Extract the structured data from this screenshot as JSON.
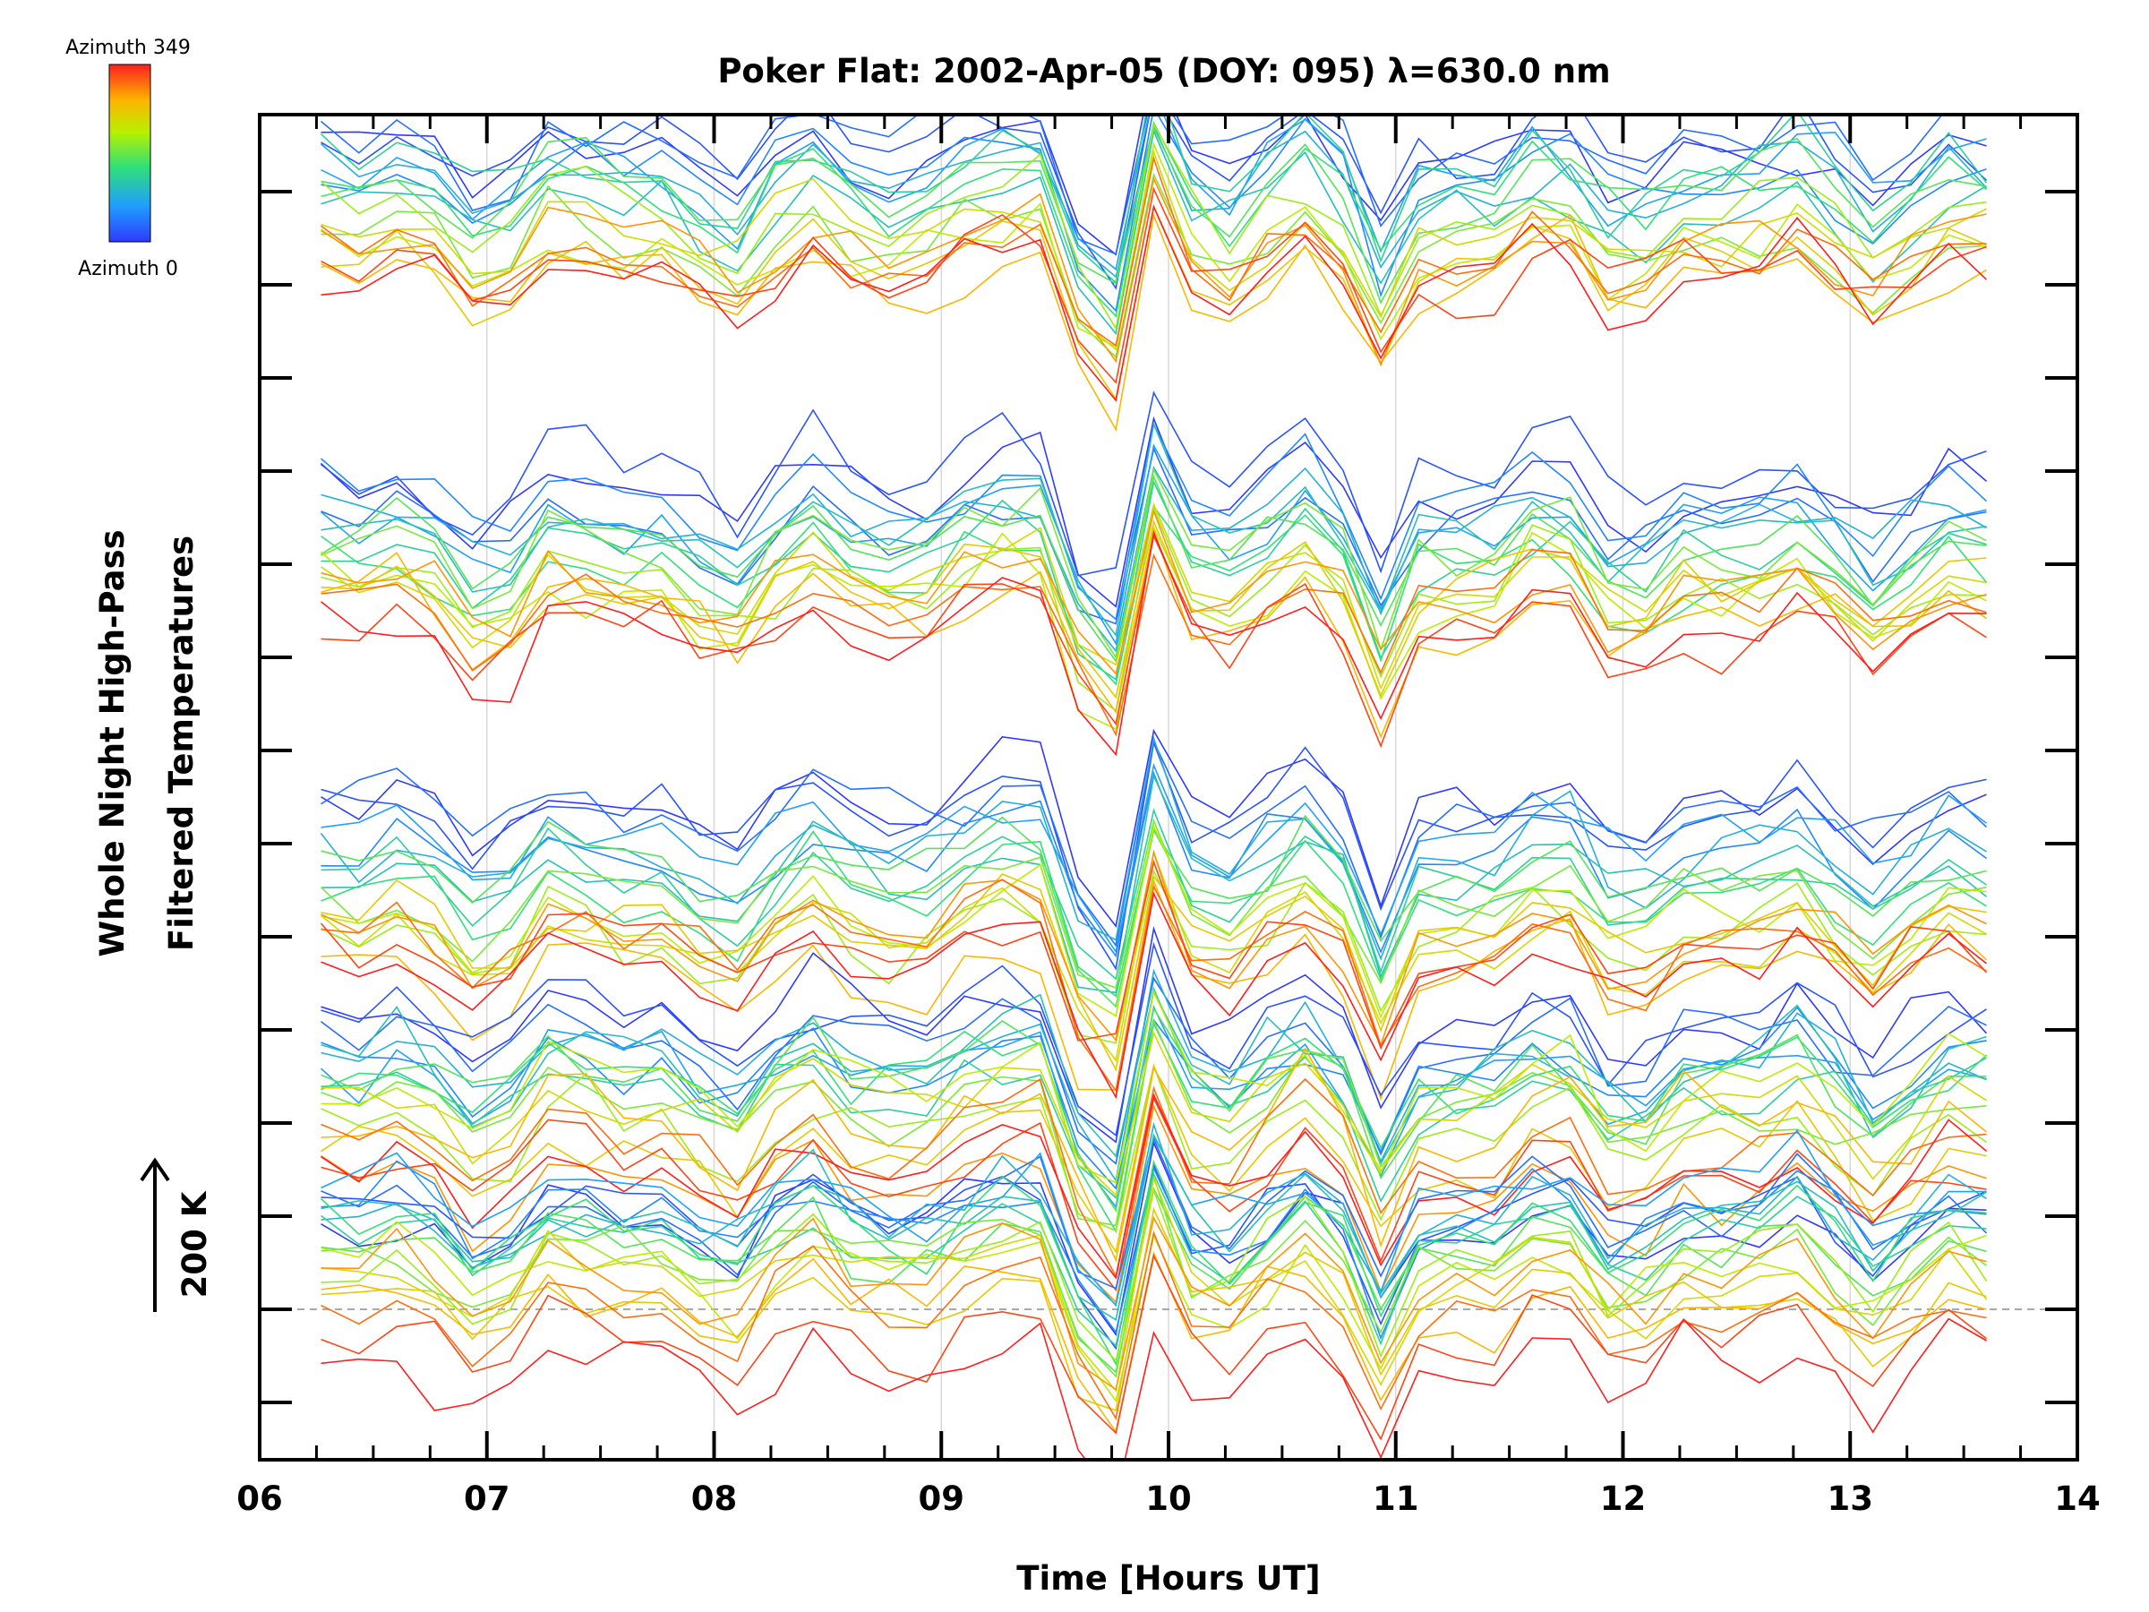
{
  "chart_data": {
    "type": "line",
    "title": "Poker Flat: 2002-Apr-05 (DOY: 095) λ=630.0 nm",
    "xlabel": "Time [Hours UT]",
    "ylabel_line1": "Whole Night High-Pass",
    "ylabel_line2": "Filtered Temperatures",
    "xlim": [
      6,
      14
    ],
    "x_ticks": [
      "06",
      "07",
      "08",
      "09",
      "10",
      "11",
      "12",
      "13",
      "14"
    ],
    "scale_bar_label": "200 K",
    "scale_bar_kelvin": 200,
    "colorbar": {
      "top_label": "Azimuth 349",
      "bottom_label": "Azimuth 0",
      "min_azimuth": 0,
      "max_azimuth": 349
    },
    "time_samples": {
      "start_hour": 6.27,
      "end_hour": 13.6,
      "count": 45
    },
    "series_groups": {
      "count": 5,
      "traces_per_group": 20,
      "description": "Five vertically offset bands of high-pass filtered temperature traces, one trace per azimuth, colored by azimuth (blue=0 to red=349)"
    },
    "style": {
      "axis_color": "#000000",
      "grid_color": "#d8d8d8",
      "dashed_baseline_color": "#aaaaaa"
    }
  }
}
